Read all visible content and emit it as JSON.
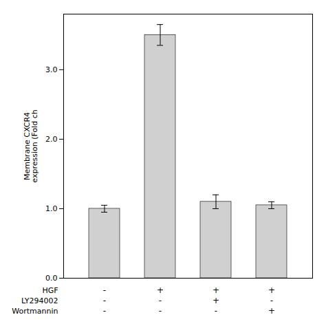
{
  "chart_data": {
    "type": "bar",
    "categories": [
      null,
      null,
      null,
      null
    ],
    "values": [
      1.0,
      3.5,
      1.1,
      1.05
    ],
    "errors": [
      0.05,
      0.15,
      0.1,
      0.05
    ],
    "color": "#d0d0d0",
    "ylabel": "Membrane CXCR4\nexpression (Fold ch",
    "ylim": [
      0,
      3.8
    ],
    "yticks": [
      0,
      1,
      2,
      3
    ],
    "condition_rows": [
      {
        "name": "HGF",
        "signs": [
          "-",
          "+",
          "+",
          "+"
        ]
      },
      {
        "name": "LY294002",
        "signs": [
          "-",
          "-",
          "+",
          "-"
        ]
      },
      {
        "name": "Wortmannin",
        "signs": [
          "-",
          "-",
          "-",
          "+"
        ]
      }
    ]
  }
}
